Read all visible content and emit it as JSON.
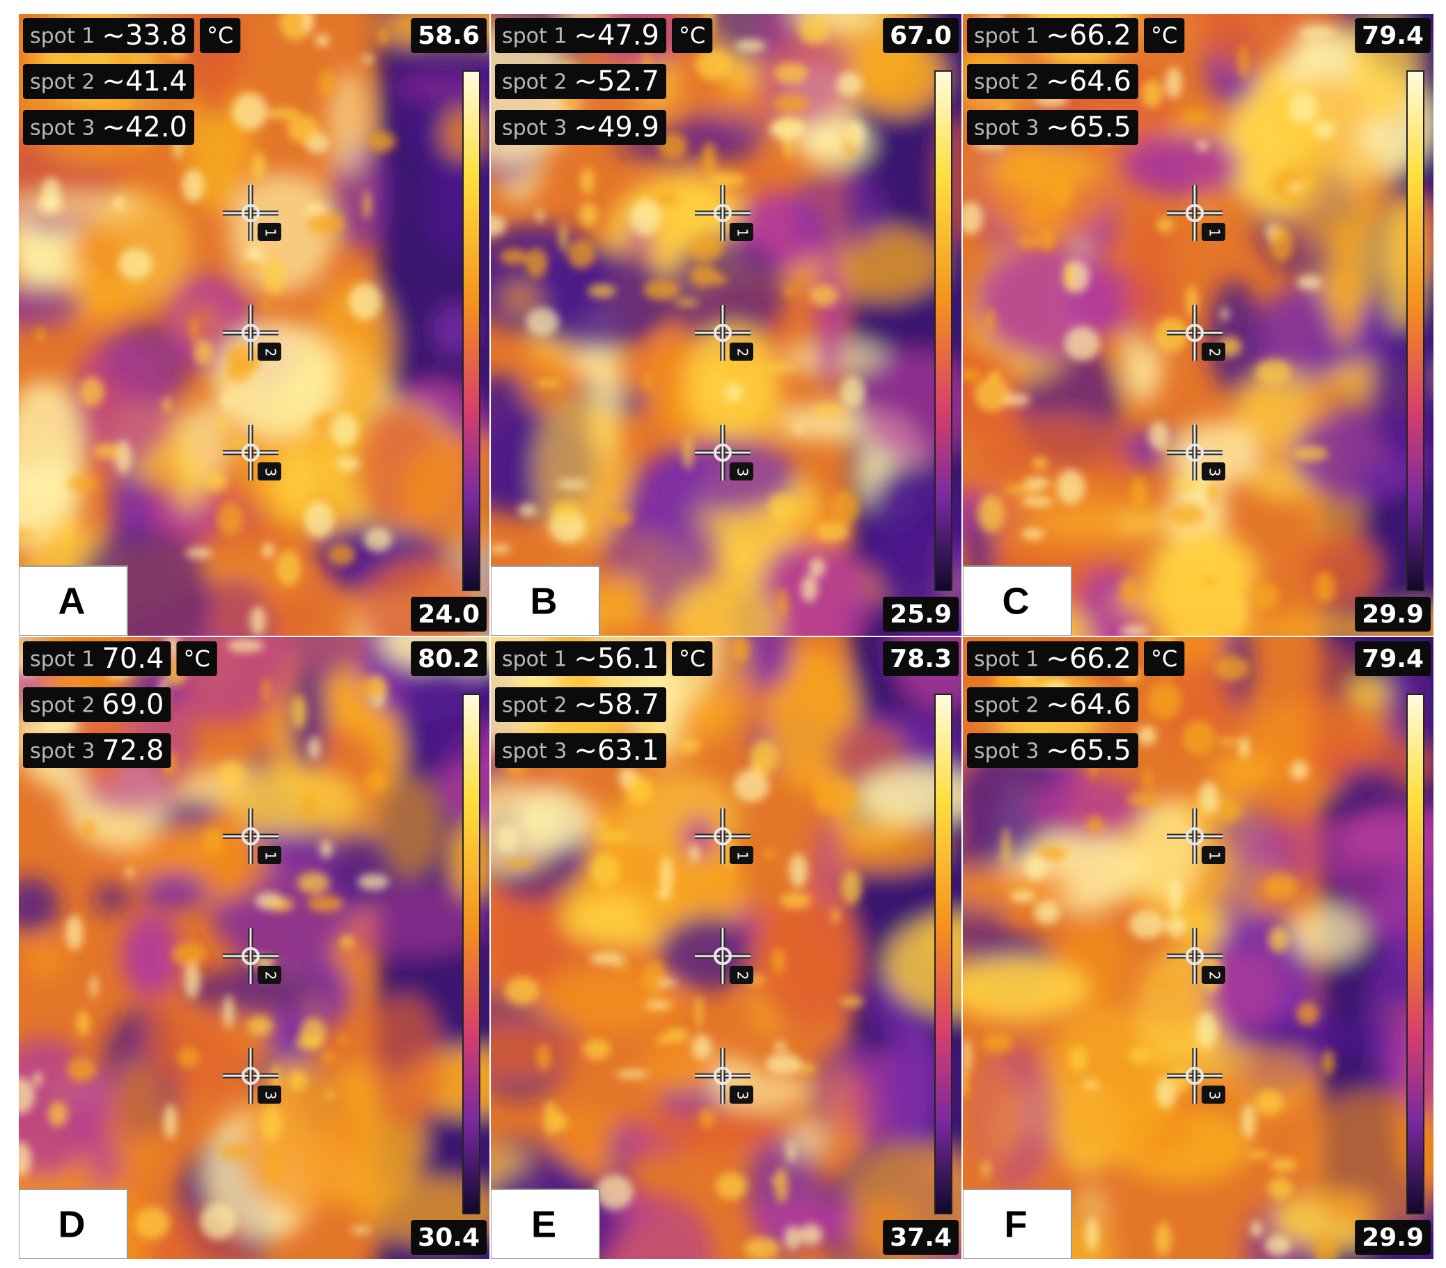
{
  "panels": [
    {
      "label": "A",
      "unit": "°C",
      "max": "58.6",
      "min": "24.0",
      "spots": [
        {
          "name": "spot 1",
          "value": "~33.8",
          "marker": "1"
        },
        {
          "name": "spot 2",
          "value": "~41.4",
          "marker": "2"
        },
        {
          "name": "spot 3",
          "value": "~42.0",
          "marker": "3"
        }
      ]
    },
    {
      "label": "B",
      "unit": "°C",
      "max": "67.0",
      "min": "25.9",
      "spots": [
        {
          "name": "spot 1",
          "value": "~47.9",
          "marker": "1"
        },
        {
          "name": "spot 2",
          "value": "~52.7",
          "marker": "2"
        },
        {
          "name": "spot 3",
          "value": "~49.9",
          "marker": "3"
        }
      ]
    },
    {
      "label": "C",
      "unit": "°C",
      "max": "79.4",
      "min": "29.9",
      "spots": [
        {
          "name": "spot 1",
          "value": "~66.2",
          "marker": "1"
        },
        {
          "name": "spot 2",
          "value": "~64.6",
          "marker": "2"
        },
        {
          "name": "spot 3",
          "value": "~65.5",
          "marker": "3"
        }
      ]
    },
    {
      "label": "D",
      "unit": "°C",
      "max": "80.2",
      "min": "30.4",
      "spots": [
        {
          "name": "spot 1",
          "value": "70.4",
          "marker": "1"
        },
        {
          "name": "spot 2",
          "value": "69.0",
          "marker": "2"
        },
        {
          "name": "spot 3",
          "value": "72.8",
          "marker": "3"
        }
      ]
    },
    {
      "label": "E",
      "unit": "°C",
      "max": "78.3",
      "min": "37.4",
      "spots": [
        {
          "name": "spot 1",
          "value": "~56.1",
          "marker": "1"
        },
        {
          "name": "spot 2",
          "value": "~58.7",
          "marker": "2"
        },
        {
          "name": "spot 3",
          "value": "~63.1",
          "marker": "3"
        }
      ]
    },
    {
      "label": "F",
      "unit": "°C",
      "max": "79.4",
      "min": "29.9",
      "spots": [
        {
          "name": "spot 1",
          "value": "~66.2",
          "marker": "1"
        },
        {
          "name": "spot 2",
          "value": "~64.6",
          "marker": "2"
        },
        {
          "name": "spot 3",
          "value": "~65.5",
          "marker": "3"
        }
      ]
    }
  ]
}
